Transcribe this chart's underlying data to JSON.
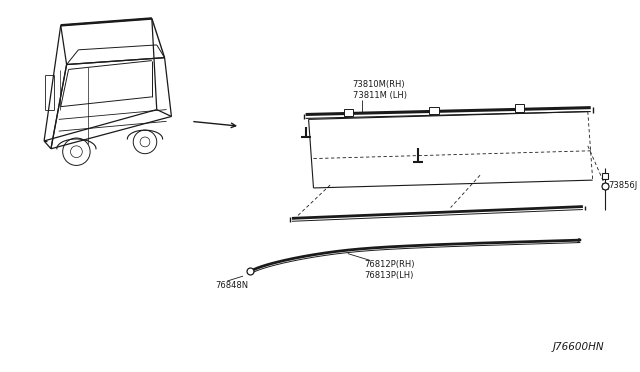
{
  "bg_color": "#ffffff",
  "line_color": "#1a1a1a",
  "diagram_id": "J76600HN",
  "label_fontsize": 6.0,
  "diagram_fontsize": 7.5,
  "parts": [
    {
      "id": "73810M(RH)",
      "label": "73810M(RH)\n73811M (LH)"
    },
    {
      "id": "76812P(RH)",
      "label": "76812P(RH)\n76813P(LH)"
    },
    {
      "id": "76848N",
      "label": "76848N"
    },
    {
      "id": "73856J",
      "label": "73856J"
    }
  ]
}
